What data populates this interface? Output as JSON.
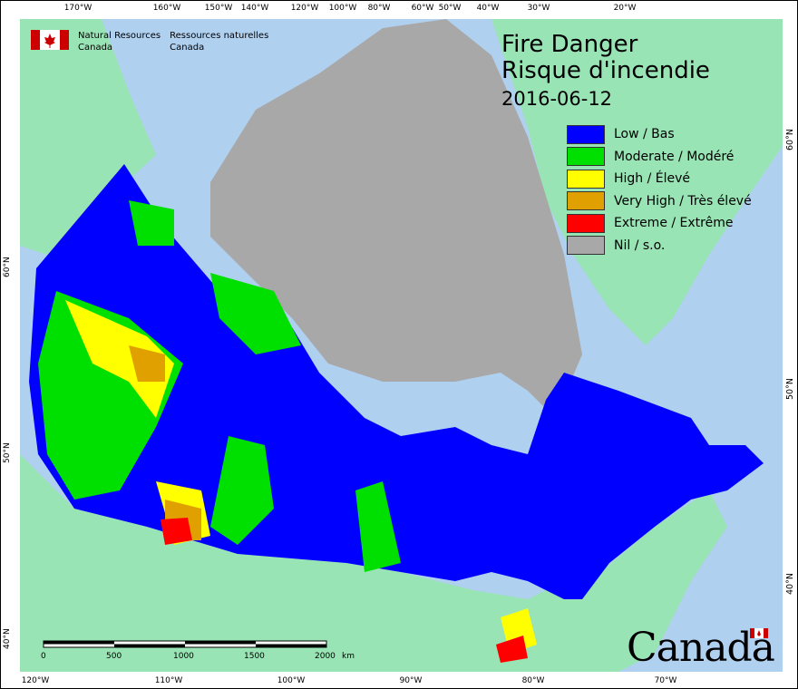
{
  "agency": {
    "en_line1": "Natural Resources",
    "en_line2": "Canada",
    "fr_line1": "Ressources naturelles",
    "fr_line2": "Canada"
  },
  "title": {
    "en": "Fire Danger",
    "fr": "Risque d'incendie",
    "date": "2016-06-12"
  },
  "legend": [
    {
      "label": "Low / Bas",
      "color": "#0000ff"
    },
    {
      "label": "Moderate / Modéré",
      "color": "#00e000"
    },
    {
      "label": "High / Élevé",
      "color": "#ffff00"
    },
    {
      "label": "Very High / Très élevé",
      "color": "#e0a000"
    },
    {
      "label": "Extreme / Extrême",
      "color": "#ff0000"
    },
    {
      "label": "Nil / s.o.",
      "color": "#a8a8a8"
    }
  ],
  "axes": {
    "top": [
      "170°W",
      "160°W",
      "150°W",
      "140°W",
      "120°W",
      "100°W",
      "80°W",
      "60°W",
      "50°W",
      "40°W",
      "30°W",
      "20°W"
    ],
    "bottom": [
      "120°W",
      "110°W",
      "100°W",
      "90°W",
      "80°W",
      "70°W"
    ],
    "left": [
      "60°N",
      "50°N",
      "40°N"
    ],
    "right": [
      "60°N",
      "50°N",
      "40°N"
    ]
  },
  "scale_bar": {
    "labels": [
      "0",
      "500",
      "1000",
      "1500",
      "2000"
    ],
    "unit": "km"
  },
  "wordmark": "Canada",
  "colors": {
    "ocean": "#b0d0f0",
    "foreign_land": "#98e4b4"
  }
}
